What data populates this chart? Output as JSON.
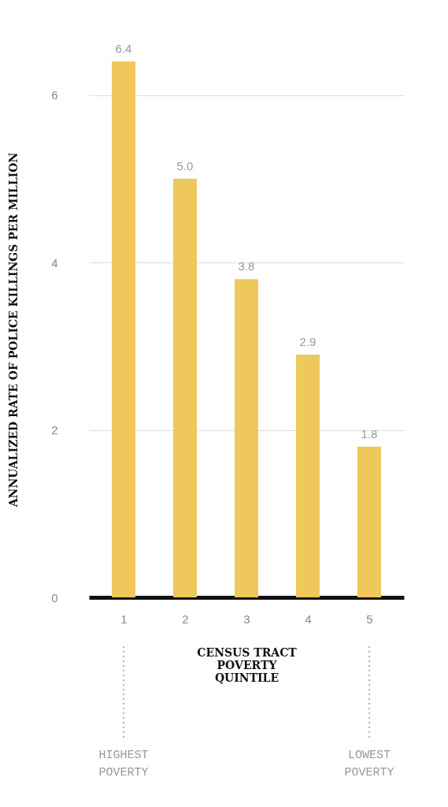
{
  "chart_data": {
    "type": "bar",
    "categories": [
      "1",
      "2",
      "3",
      "4",
      "5"
    ],
    "values": [
      6.4,
      5.0,
      3.8,
      2.9,
      1.8
    ],
    "color": "#efc85c",
    "value_labels": [
      "6.4",
      "5.0",
      "3.8",
      "2.9",
      "1.8"
    ],
    "xlabel": "CENSUS TRACT POVERTY QUINTILE",
    "ylabel": "ANNUALIZED RATE OF POLICE KILLINGS PER MILLION",
    "ylim": [
      0,
      6.4
    ],
    "yticks": [
      0,
      2,
      4,
      6
    ],
    "grid": "y",
    "annotations": [
      {
        "text": "HIGHEST POVERTY",
        "x": "1"
      },
      {
        "text": "LOWEST POVERTY",
        "x": "5"
      }
    ]
  }
}
